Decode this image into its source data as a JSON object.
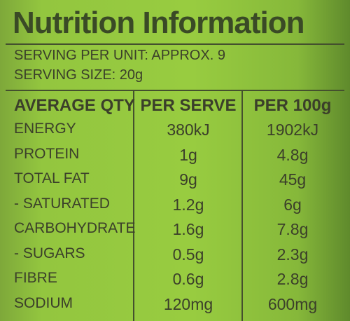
{
  "header": {
    "title": "Nutrition Information"
  },
  "serving": [
    "SERVING PER UNIT: APPROX. 9",
    "SERVING SIZE: 20g"
  ],
  "table": {
    "header": [
      "AVERAGE QTY",
      "PER SERVE",
      "PER 100g"
    ],
    "rows": [
      [
        "ENERGY",
        "380kJ",
        "1902kJ"
      ],
      [
        "PROTEIN",
        "1g",
        "4.8g"
      ],
      [
        "TOTAL FAT",
        "9g",
        "45g"
      ],
      [
        "- SATURATED",
        "1.2g",
        "6g"
      ],
      [
        "CARBOHYDRATE",
        "1.6g",
        "7.8g"
      ],
      [
        "- SUGARS",
        "0.5g",
        "2.3g"
      ],
      [
        "FIBRE",
        "0.6g",
        "2.8g"
      ],
      [
        "SODIUM",
        "120mg",
        "600mg"
      ]
    ]
  }
}
